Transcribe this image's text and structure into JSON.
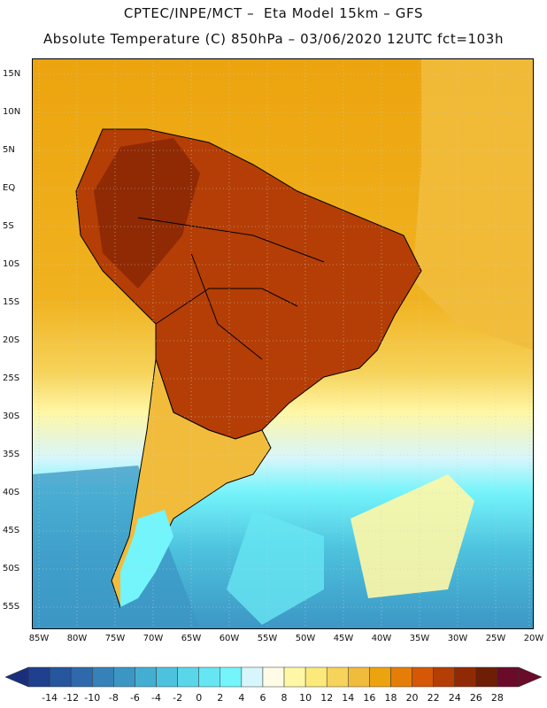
{
  "header": {
    "line1": "CPTEC/INPE/MCT –  Eta Model 15km – GFS",
    "line2": "Absolute Temperature (C) 850hPa – 03/06/2020 12UTC fct=103h"
  },
  "map": {
    "lat_labels": [
      "15N",
      "10N",
      "5N",
      "EQ",
      "5S",
      "10S",
      "15S",
      "20S",
      "25S",
      "30S",
      "35S",
      "40S",
      "45S",
      "50S",
      "55S"
    ],
    "lon_labels": [
      "85W",
      "80W",
      "75W",
      "70W",
      "65W",
      "60W",
      "55W",
      "50W",
      "45W",
      "40W",
      "35W",
      "30W",
      "25W",
      "20W"
    ]
  },
  "colorbar": {
    "labels": [
      "-14",
      "-12",
      "-10",
      "-8",
      "-6",
      "-4",
      "-2",
      "0",
      "2",
      "4",
      "6",
      "8",
      "10",
      "12",
      "14",
      "16",
      "18",
      "20",
      "22",
      "24",
      "26",
      "28"
    ],
    "colors": [
      "#1f3f8f",
      "#25569e",
      "#2e6aab",
      "#3682b8",
      "#3c96c4",
      "#44aed2",
      "#4dc2de",
      "#5ad6ea",
      "#66e6f3",
      "#74f4fb",
      "#d7f6fb",
      "#fffbe6",
      "#fff7a6",
      "#fbe97b",
      "#f6d35a",
      "#f1bc3c",
      "#eca40e",
      "#e57e08",
      "#d65806",
      "#b43e05",
      "#8f2a04",
      "#6d1e05",
      "#6a0b2a"
    ],
    "left_arrow_color": "#1a2f7c",
    "right_arrow_color": "#6a0b2a"
  }
}
